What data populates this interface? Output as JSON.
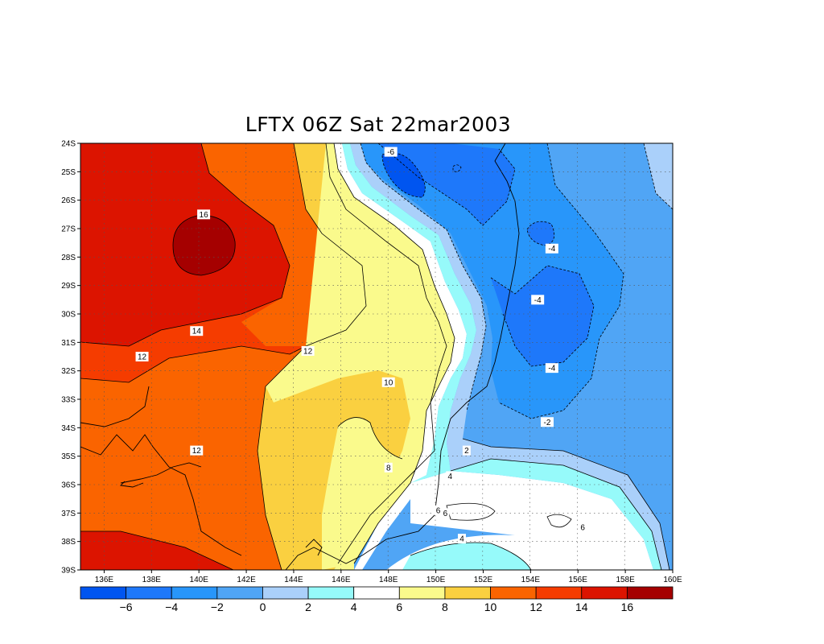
{
  "title": "LFTX 06Z Sat 22mar2003",
  "map": {
    "lat_ticks": [
      "24S",
      "25S",
      "26S",
      "27S",
      "28S",
      "29S",
      "30S",
      "31S",
      "32S",
      "33S",
      "34S",
      "35S",
      "36S",
      "37S",
      "38S",
      "39S"
    ],
    "lon_ticks": [
      "136E",
      "138E",
      "140E",
      "142E",
      "144E",
      "146E",
      "148E",
      "150E",
      "152E",
      "154E",
      "156E",
      "158E",
      "160E"
    ],
    "lat_range": [
      -39,
      -24
    ],
    "lon_range": [
      135,
      160
    ],
    "grid": true,
    "coastline_color": "#000000"
  },
  "contour_labels": [
    {
      "text": "-6",
      "lon": 148.1,
      "lat": -24.3
    },
    {
      "text": "16",
      "lon": 140.2,
      "lat": -26.5
    },
    {
      "text": "-4",
      "lon": 154.9,
      "lat": -27.7
    },
    {
      "text": "-4",
      "lon": 154.3,
      "lat": -29.5
    },
    {
      "text": "14",
      "lon": 139.9,
      "lat": -30.6
    },
    {
      "text": "12",
      "lon": 137.6,
      "lat": -31.5
    },
    {
      "text": "12",
      "lon": 144.6,
      "lat": -31.3
    },
    {
      "text": "-4",
      "lon": 154.9,
      "lat": -31.9
    },
    {
      "text": "10",
      "lon": 148.0,
      "lat": -32.4
    },
    {
      "text": "-2",
      "lon": 154.7,
      "lat": -33.8
    },
    {
      "text": "12",
      "lon": 139.9,
      "lat": -34.8
    },
    {
      "text": "2",
      "lon": 151.3,
      "lat": -34.8
    },
    {
      "text": "8",
      "lon": 148.0,
      "lat": -35.4
    },
    {
      "text": "4",
      "lon": 150.6,
      "lat": -35.7
    },
    {
      "text": "6",
      "lon": 150.1,
      "lat": -36.9
    },
    {
      "text": "6",
      "lon": 150.4,
      "lat": -37.0
    },
    {
      "text": "6",
      "lon": 156.2,
      "lat": -37.5
    },
    {
      "text": "4",
      "lon": 151.1,
      "lat": -37.9
    }
  ],
  "colorbar": {
    "colors": [
      "#0055f0",
      "#1e78fa",
      "#2896fa",
      "#50a5f5",
      "#aad0fa",
      "#96fafa",
      "#ffffff",
      "#fafa8c",
      "#fad040",
      "#fa6400",
      "#f53c00",
      "#dc1400",
      "#a50000"
    ],
    "labels": [
      "-6",
      "-4",
      "-2",
      "0",
      "2",
      "4",
      "6",
      "8",
      "10",
      "12",
      "14",
      "16"
    ]
  },
  "legend_levels": [
    -6,
    -4,
    -2,
    0,
    2,
    4,
    6,
    8,
    10,
    12,
    14,
    16
  ]
}
